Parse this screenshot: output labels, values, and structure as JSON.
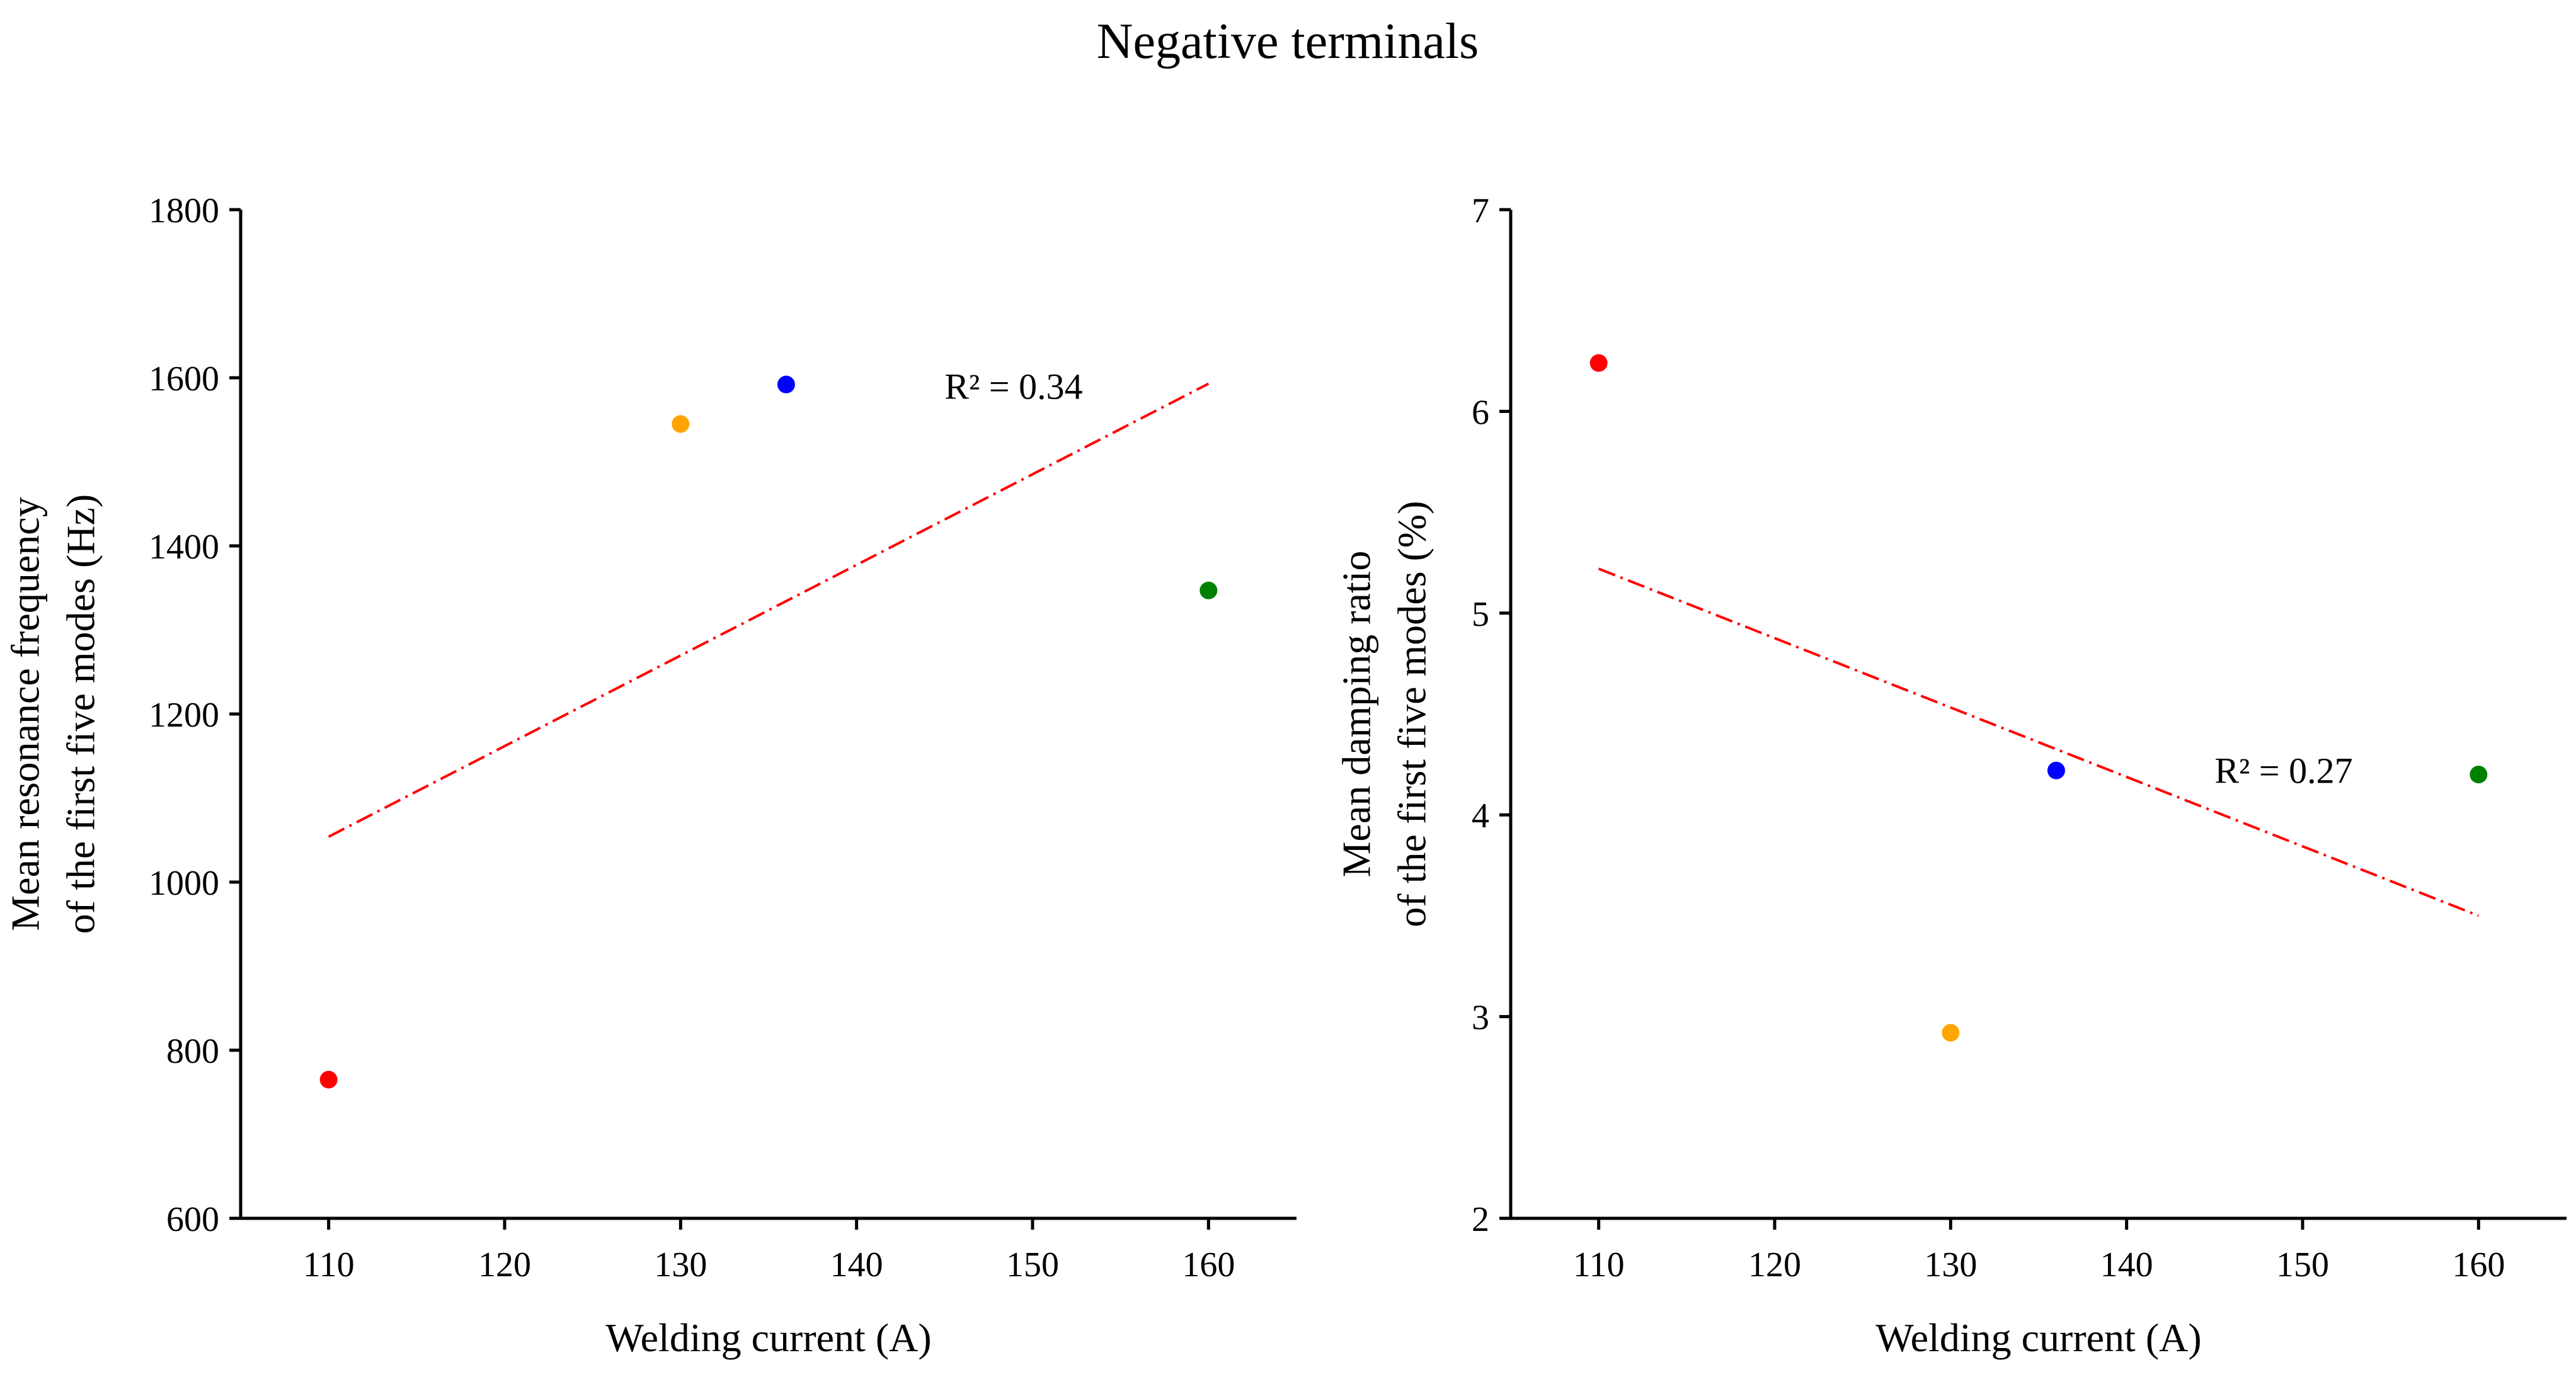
{
  "figure_title": "Negative terminals",
  "chart_data": [
    {
      "type": "scatter",
      "title": "",
      "xlabel": "Welding current (A)",
      "ylabel_lines": [
        "Mean resonance frequency",
        "of the first five modes (Hz)"
      ],
      "xlim": [
        105,
        165
      ],
      "ylim": [
        600,
        1800
      ],
      "xticks": [
        110,
        120,
        130,
        140,
        150,
        160
      ],
      "yticks": [
        600,
        800,
        1000,
        1200,
        1400,
        1600,
        1800
      ],
      "points": [
        {
          "x": 110,
          "y": 765,
          "color": "#ff0000"
        },
        {
          "x": 130,
          "y": 1545,
          "color": "#ffa500"
        },
        {
          "x": 136,
          "y": 1592,
          "color": "#0000ff"
        },
        {
          "x": 160,
          "y": 1347,
          "color": "#008000"
        }
      ],
      "trendline": {
        "x": [
          110,
          160
        ],
        "y": [
          1054,
          1593
        ],
        "color": "#ff0000",
        "style": "dashdot"
      },
      "annotation": {
        "text": "R² = 0.34",
        "x": 145,
        "y": 1590
      }
    },
    {
      "type": "scatter",
      "title": "",
      "xlabel": "Welding current (A)",
      "ylabel_lines": [
        "Mean damping ratio",
        "of the first five modes (%)"
      ],
      "xlim": [
        105,
        165
      ],
      "ylim": [
        2,
        7
      ],
      "xticks": [
        110,
        120,
        130,
        140,
        150,
        160
      ],
      "yticks": [
        2,
        3,
        4,
        5,
        6,
        7
      ],
      "points": [
        {
          "x": 110,
          "y": 6.24,
          "color": "#ff0000"
        },
        {
          "x": 130,
          "y": 2.92,
          "color": "#ffa500"
        },
        {
          "x": 136,
          "y": 4.22,
          "color": "#0000ff"
        },
        {
          "x": 160,
          "y": 4.2,
          "color": "#008000"
        }
      ],
      "trendline": {
        "x": [
          110,
          160
        ],
        "y": [
          5.22,
          3.5
        ],
        "color": "#ff0000",
        "style": "dashdot"
      },
      "annotation": {
        "text": "R² = 0.27",
        "x": 145,
        "y": 4.22
      }
    }
  ]
}
